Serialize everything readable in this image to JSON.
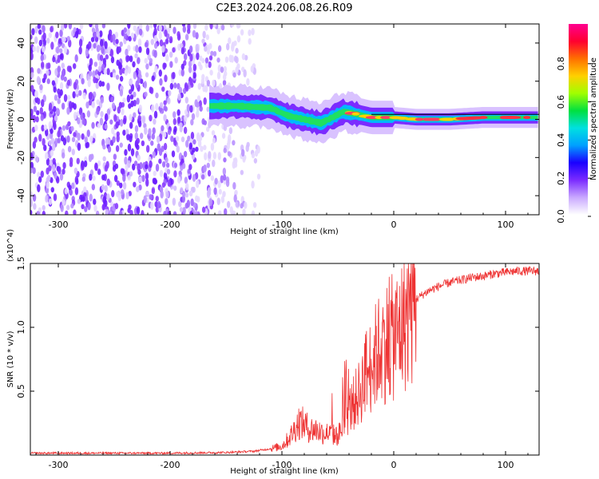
{
  "title": "C2E3.2024.206.08.26.R09",
  "chart_data": [
    {
      "type": "heatmap",
      "xlabel": "Height of straight line (km)",
      "ylabel": "Frequency (Hz)",
      "xlim": [
        -325,
        130
      ],
      "ylim": [
        -50,
        50
      ],
      "x_ticks": [
        -300,
        -200,
        -100,
        0,
        100
      ],
      "y_ticks": [
        -40,
        -20,
        0,
        20,
        40
      ],
      "colorbar": {
        "label": "Normalized spectral amplitude",
        "range": [
          0,
          1
        ],
        "ticks": [
          "0.0",
          "0.2",
          "0.4",
          "0.6",
          "0.8"
        ],
        "colors": [
          "#ffffff",
          "#c9a8ff",
          "#7b2cff",
          "#1a00ff",
          "#00a0ff",
          "#00e0e0",
          "#00e040",
          "#a0ff00",
          "#ffd000",
          "#ff7000",
          "#ff0030",
          "#ff0090"
        ]
      },
      "noise_region_x": [
        -325,
        -120
      ],
      "signal_centerline": [
        {
          "x": -165,
          "y": 7
        },
        {
          "x": -140,
          "y": 7
        },
        {
          "x": -110,
          "y": 6
        },
        {
          "x": -95,
          "y": 2
        },
        {
          "x": -80,
          "y": 0
        },
        {
          "x": -65,
          "y": -2
        },
        {
          "x": -55,
          "y": 1
        },
        {
          "x": -45,
          "y": 4
        },
        {
          "x": -35,
          "y": 3
        },
        {
          "x": -20,
          "y": 1
        },
        {
          "x": 0,
          "y": 1
        },
        {
          "x": 20,
          "y": 0
        },
        {
          "x": 50,
          "y": 0
        },
        {
          "x": 80,
          "y": 1
        },
        {
          "x": 100,
          "y": 1
        },
        {
          "x": 130,
          "y": 1
        }
      ]
    },
    {
      "type": "line",
      "xlabel": "Height of straight line (km)",
      "ylabel": "SNR (10 * v/v)",
      "scale_label": "(x10^4)",
      "xlim": [
        -325,
        130
      ],
      "ylim": [
        0,
        15000
      ],
      "x_ticks": [
        -300,
        -200,
        -100,
        0,
        100
      ],
      "y_ticks": [
        "0.5",
        "1.0",
        "1.5"
      ],
      "color": "#ee3333",
      "series": [
        {
          "x": [
            -325,
            -250,
            -200,
            -150,
            -125,
            -110,
            -100,
            -95,
            -90,
            -85,
            -80,
            -75,
            -70,
            -65,
            -60,
            -55,
            -50,
            -45,
            -40,
            -35,
            -30,
            -25,
            -20,
            -15,
            -10,
            -5,
            0,
            5,
            10,
            15,
            20,
            30,
            40,
            50,
            60,
            70,
            80,
            90,
            100,
            110,
            120,
            130
          ],
          "values": [
            150,
            150,
            150,
            200,
            300,
            500,
            700,
            1200,
            1800,
            2600,
            2400,
            2000,
            2000,
            1800,
            1700,
            1600,
            1500,
            2300,
            3500,
            4200,
            5000,
            6500,
            7000,
            8000,
            8600,
            9000,
            9200,
            9700,
            10600,
            11500,
            12200,
            12800,
            13200,
            13500,
            13700,
            13900,
            14000,
            14200,
            14300,
            14400,
            14400,
            14400
          ]
        }
      ]
    }
  ]
}
